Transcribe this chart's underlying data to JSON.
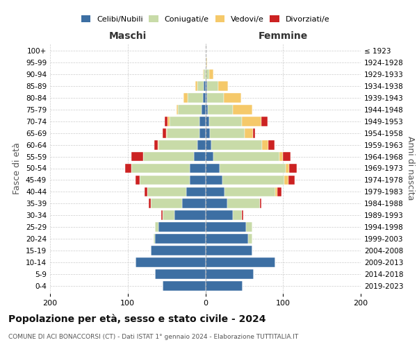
{
  "age_groups": [
    "0-4",
    "5-9",
    "10-14",
    "15-19",
    "20-24",
    "25-29",
    "30-34",
    "35-39",
    "40-44",
    "45-49",
    "50-54",
    "55-59",
    "60-64",
    "65-69",
    "70-74",
    "75-79",
    "80-84",
    "85-89",
    "90-94",
    "95-99",
    "100+"
  ],
  "birth_years": [
    "2019-2023",
    "2014-2018",
    "2009-2013",
    "2004-2008",
    "1999-2003",
    "1994-1998",
    "1989-1993",
    "1984-1988",
    "1979-1983",
    "1974-1978",
    "1969-1973",
    "1964-1968",
    "1959-1963",
    "1954-1958",
    "1949-1953",
    "1944-1948",
    "1939-1943",
    "1934-1938",
    "1929-1933",
    "1924-1928",
    "≤ 1923"
  ],
  "colors": {
    "celibi": "#3d6fa3",
    "coniugati": "#c8dba8",
    "vedovi": "#f5c96a",
    "divorziati": "#cc2222"
  },
  "maschi": {
    "celibi": [
      55,
      65,
      90,
      70,
      65,
      60,
      40,
      30,
      25,
      20,
      20,
      15,
      10,
      8,
      8,
      5,
      3,
      2,
      0,
      0,
      0
    ],
    "coniugati": [
      0,
      0,
      0,
      0,
      2,
      5,
      15,
      40,
      50,
      65,
      75,
      65,
      50,
      42,
      38,
      30,
      20,
      8,
      2,
      0,
      0
    ],
    "vedovi": [
      0,
      0,
      0,
      0,
      0,
      0,
      0,
      0,
      0,
      0,
      0,
      0,
      1,
      1,
      3,
      2,
      5,
      3,
      1,
      0,
      0
    ],
    "divorziati": [
      0,
      0,
      0,
      0,
      0,
      0,
      2,
      3,
      3,
      5,
      8,
      15,
      5,
      4,
      3,
      0,
      0,
      0,
      0,
      0,
      0
    ]
  },
  "femmine": {
    "celibi": [
      48,
      62,
      90,
      60,
      55,
      52,
      35,
      28,
      25,
      22,
      18,
      10,
      8,
      6,
      5,
      3,
      2,
      2,
      0,
      0,
      0
    ],
    "coniugati": [
      0,
      0,
      0,
      0,
      5,
      8,
      12,
      42,
      65,
      80,
      85,
      85,
      65,
      45,
      42,
      32,
      22,
      15,
      5,
      1,
      0
    ],
    "vedovi": [
      0,
      0,
      0,
      0,
      0,
      0,
      0,
      0,
      3,
      5,
      5,
      5,
      8,
      10,
      25,
      25,
      22,
      12,
      5,
      1,
      0
    ],
    "divorziati": [
      0,
      0,
      0,
      0,
      0,
      0,
      2,
      2,
      5,
      8,
      10,
      10,
      8,
      3,
      8,
      0,
      0,
      0,
      0,
      0,
      0
    ]
  },
  "title": "Popolazione per età, sesso e stato civile - 2024",
  "subtitle": "COMUNE DI ACI BONACCORSI (CT) - Dati ISTAT 1° gennaio 2024 - Elaborazione TUTTITALIA.IT",
  "xlabel_left": "Maschi",
  "xlabel_right": "Femmine",
  "ylabel_left": "Fasce di età",
  "ylabel_right": "Anni di nascita",
  "xlim": 200,
  "bg_color": "#ffffff",
  "legend_labels": [
    "Celibi/Nubili",
    "Coniugati/e",
    "Vedovi/e",
    "Divorziati/e"
  ]
}
